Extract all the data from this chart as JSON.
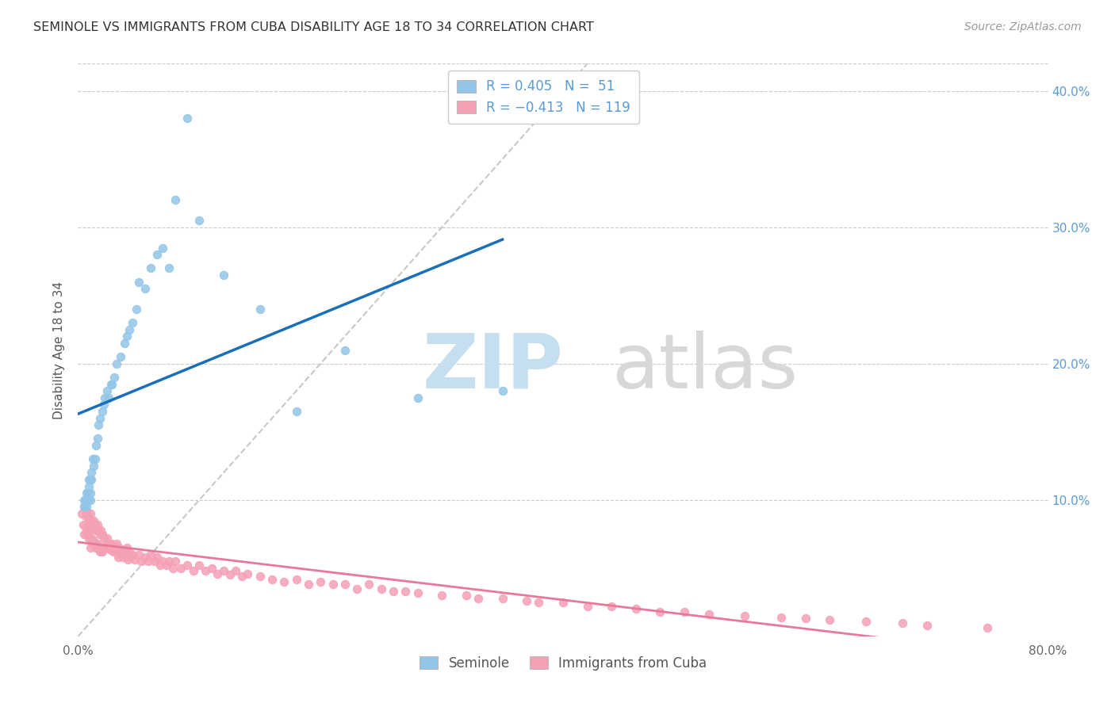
{
  "title": "SEMINOLE VS IMMIGRANTS FROM CUBA DISABILITY AGE 18 TO 34 CORRELATION CHART",
  "source": "Source: ZipAtlas.com",
  "ylabel": "Disability Age 18 to 34",
  "xlim": [
    0.0,
    0.8
  ],
  "ylim": [
    0.0,
    0.42
  ],
  "seminole_R": 0.405,
  "seminole_N": 51,
  "cuba_R": -0.413,
  "cuba_N": 119,
  "seminole_color": "#92c5e8",
  "cuba_color": "#f4a0b5",
  "seminole_line_color": "#1a6fba",
  "cuba_line_color": "#e8799a",
  "diagonal_color": "#c8c8c8",
  "background_color": "#ffffff",
  "seminole_x": [
    0.005,
    0.005,
    0.006,
    0.007,
    0.007,
    0.008,
    0.008,
    0.009,
    0.009,
    0.01,
    0.01,
    0.01,
    0.011,
    0.011,
    0.012,
    0.013,
    0.014,
    0.015,
    0.016,
    0.017,
    0.018,
    0.02,
    0.021,
    0.022,
    0.024,
    0.025,
    0.027,
    0.028,
    0.03,
    0.032,
    0.035,
    0.038,
    0.04,
    0.042,
    0.045,
    0.048,
    0.05,
    0.055,
    0.06,
    0.065,
    0.07,
    0.075,
    0.08,
    0.09,
    0.1,
    0.12,
    0.15,
    0.18,
    0.22,
    0.28,
    0.35
  ],
  "seminole_y": [
    0.1,
    0.095,
    0.1,
    0.105,
    0.095,
    0.1,
    0.105,
    0.115,
    0.11,
    0.105,
    0.115,
    0.1,
    0.12,
    0.115,
    0.13,
    0.125,
    0.13,
    0.14,
    0.145,
    0.155,
    0.16,
    0.165,
    0.17,
    0.175,
    0.18,
    0.175,
    0.185,
    0.185,
    0.19,
    0.2,
    0.205,
    0.215,
    0.22,
    0.225,
    0.23,
    0.24,
    0.26,
    0.255,
    0.27,
    0.28,
    0.285,
    0.27,
    0.32,
    0.38,
    0.305,
    0.265,
    0.24,
    0.165,
    0.21,
    0.175,
    0.18
  ],
  "cuba_x": [
    0.003,
    0.004,
    0.005,
    0.005,
    0.006,
    0.006,
    0.007,
    0.007,
    0.008,
    0.008,
    0.009,
    0.009,
    0.01,
    0.01,
    0.01,
    0.011,
    0.011,
    0.012,
    0.012,
    0.013,
    0.013,
    0.014,
    0.014,
    0.015,
    0.015,
    0.016,
    0.016,
    0.017,
    0.017,
    0.018,
    0.018,
    0.019,
    0.019,
    0.02,
    0.02,
    0.021,
    0.022,
    0.023,
    0.024,
    0.025,
    0.026,
    0.027,
    0.028,
    0.029,
    0.03,
    0.031,
    0.032,
    0.033,
    0.034,
    0.035,
    0.036,
    0.037,
    0.038,
    0.04,
    0.041,
    0.042,
    0.043,
    0.045,
    0.047,
    0.05,
    0.052,
    0.055,
    0.058,
    0.06,
    0.063,
    0.065,
    0.068,
    0.07,
    0.073,
    0.075,
    0.078,
    0.08,
    0.085,
    0.09,
    0.095,
    0.1,
    0.105,
    0.11,
    0.115,
    0.12,
    0.125,
    0.13,
    0.135,
    0.14,
    0.15,
    0.16,
    0.17,
    0.18,
    0.19,
    0.2,
    0.21,
    0.22,
    0.23,
    0.24,
    0.25,
    0.26,
    0.27,
    0.28,
    0.3,
    0.32,
    0.33,
    0.35,
    0.37,
    0.38,
    0.4,
    0.42,
    0.44,
    0.46,
    0.48,
    0.5,
    0.52,
    0.55,
    0.58,
    0.6,
    0.62,
    0.65,
    0.68,
    0.7,
    0.75
  ],
  "cuba_y": [
    0.09,
    0.082,
    0.095,
    0.075,
    0.088,
    0.08,
    0.092,
    0.075,
    0.088,
    0.078,
    0.085,
    0.072,
    0.09,
    0.078,
    0.065,
    0.085,
    0.072,
    0.082,
    0.068,
    0.085,
    0.07,
    0.082,
    0.068,
    0.078,
    0.065,
    0.082,
    0.068,
    0.078,
    0.065,
    0.075,
    0.062,
    0.078,
    0.063,
    0.075,
    0.062,
    0.072,
    0.065,
    0.068,
    0.072,
    0.065,
    0.068,
    0.063,
    0.068,
    0.062,
    0.065,
    0.062,
    0.068,
    0.058,
    0.065,
    0.06,
    0.063,
    0.058,
    0.062,
    0.065,
    0.056,
    0.062,
    0.058,
    0.06,
    0.056,
    0.06,
    0.055,
    0.058,
    0.055,
    0.06,
    0.055,
    0.058,
    0.052,
    0.055,
    0.052,
    0.055,
    0.05,
    0.055,
    0.05,
    0.052,
    0.048,
    0.052,
    0.048,
    0.05,
    0.046,
    0.048,
    0.045,
    0.048,
    0.044,
    0.046,
    0.044,
    0.042,
    0.04,
    0.042,
    0.038,
    0.04,
    0.038,
    0.038,
    0.035,
    0.038,
    0.035,
    0.033,
    0.033,
    0.032,
    0.03,
    0.03,
    0.028,
    0.028,
    0.026,
    0.025,
    0.025,
    0.022,
    0.022,
    0.02,
    0.018,
    0.018,
    0.016,
    0.015,
    0.014,
    0.013,
    0.012,
    0.011,
    0.01,
    0.008,
    0.006
  ]
}
